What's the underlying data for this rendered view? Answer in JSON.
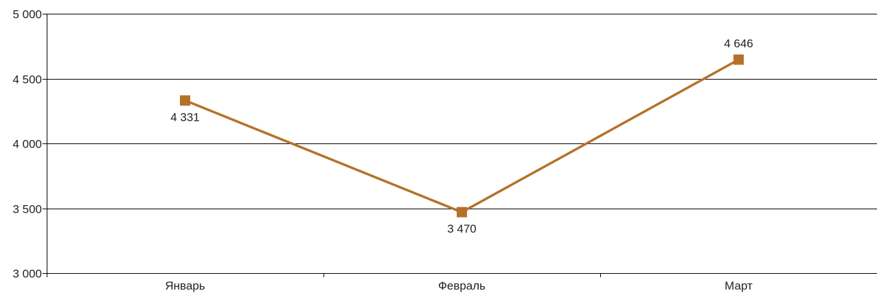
{
  "chart_data": {
    "type": "line",
    "categories": [
      "Январь",
      "Февраль",
      "Март"
    ],
    "series": [
      {
        "values": [
          4331,
          3470,
          4646
        ]
      }
    ],
    "data_labels": [
      "4 331",
      "3 470",
      "4 646"
    ],
    "y_ticks": [
      {
        "value": 5000,
        "label": "5 000"
      },
      {
        "value": 4500,
        "label": "4 500"
      },
      {
        "value": 4000,
        "label": "4 000"
      },
      {
        "value": 3500,
        "label": "3 500"
      },
      {
        "value": 3000,
        "label": "3 000"
      }
    ],
    "ylim": [
      3000,
      5000
    ],
    "grid": true,
    "legend": "none",
    "line_color": "#b5712a",
    "marker": "square"
  }
}
